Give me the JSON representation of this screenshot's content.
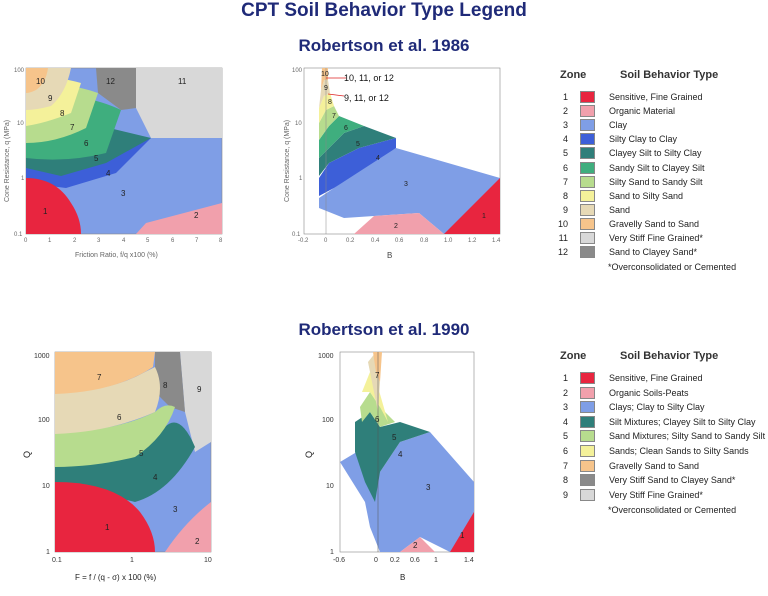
{
  "page": {
    "title": "CPT Soil Behavior Type Legend",
    "section1": "Robertson et al. 1986",
    "section2": "Robertson et al. 1990"
  },
  "colors": {
    "z1": "#e8253f",
    "z2": "#f1a0ac",
    "z3": "#7f9ee6",
    "z4": "#3d5fd8",
    "z5": "#2f7f7a",
    "z6": "#3fae7e",
    "z7": "#b7dc8e",
    "z8": "#f4f19a",
    "z9": "#e6d9b6",
    "z10": "#f6c48b",
    "z11": "#d8d8d8",
    "z12": "#8a8a8a"
  },
  "legend1986": {
    "zone_header": "Zone",
    "type_header": "Soil Behavior Type",
    "rows": [
      {
        "zone": "1",
        "label": "Sensitive, Fine Grained",
        "color": "#e8253f"
      },
      {
        "zone": "2",
        "label": "Organic Material",
        "color": "#f1a0ac"
      },
      {
        "zone": "3",
        "label": "Clay",
        "color": "#7f9ee6"
      },
      {
        "zone": "4",
        "label": "Silty Clay to Clay",
        "color": "#3d5fd8"
      },
      {
        "zone": "5",
        "label": "Clayey Silt to Silty Clay",
        "color": "#2f7f7a"
      },
      {
        "zone": "6",
        "label": "Sandy Silt to Clayey Silt",
        "color": "#3fae7e"
      },
      {
        "zone": "7",
        "label": "Silty Sand to Sandy Silt",
        "color": "#b7dc8e"
      },
      {
        "zone": "8",
        "label": "Sand to Silty Sand",
        "color": "#f4f19a"
      },
      {
        "zone": "9",
        "label": "Sand",
        "color": "#e6d9b6"
      },
      {
        "zone": "10",
        "label": "Gravelly Sand to Sand",
        "color": "#f6c48b"
      },
      {
        "zone": "11",
        "label": "Very Stiff Fine Grained*",
        "color": "#d8d8d8"
      },
      {
        "zone": "12",
        "label": "Sand to Clayey Sand*",
        "color": "#8a8a8a"
      }
    ],
    "note": "*Overconsolidated or Cemented"
  },
  "legend1990": {
    "zone_header": "Zone",
    "type_header": "Soil Behavior Type",
    "rows": [
      {
        "zone": "1",
        "label": "Sensitive, Fine Grained",
        "color": "#e8253f"
      },
      {
        "zone": "2",
        "label": "Organic Soils-Peats",
        "color": "#f1a0ac"
      },
      {
        "zone": "3",
        "label": "Clays; Clay to Silty Clay",
        "color": "#7f9ee6"
      },
      {
        "zone": "4",
        "label": "Silt Mixtures; Clayey Silt to Silty Clay",
        "color": "#2f7f7a"
      },
      {
        "zone": "5",
        "label": "Sand Mixtures; Silty Sand to Sandy Silt",
        "color": "#b7dc8e"
      },
      {
        "zone": "6",
        "label": "Sands; Clean Sands to Silty Sands",
        "color": "#f4f19a"
      },
      {
        "zone": "7",
        "label": "Gravelly Sand to Sand",
        "color": "#f6c48b"
      },
      {
        "zone": "8",
        "label": "Very Stiff Sand to Clayey Sand*",
        "color": "#8a8a8a"
      },
      {
        "zone": "9",
        "label": "Very Stiff Fine Grained*",
        "color": "#d8d8d8"
      }
    ],
    "note": "*Overconsolidated or Cemented"
  },
  "chart_1986_fr": {
    "ylabel": "Cone Resistance, q (MPa)",
    "xlabel": "Friction Ratio, f/q x100 (%)",
    "xticks": [
      "0",
      "1",
      "2",
      "3",
      "4",
      "5",
      "6",
      "7",
      "8"
    ],
    "yticks": [
      "100",
      "10",
      "1",
      "0.1"
    ]
  },
  "chart_1986_bq": {
    "ylabel": "Cone Resistance, q (MPa)",
    "xlabel": "B",
    "xticks": [
      "-0.2",
      "0",
      "0.2",
      "0.4",
      "0.6",
      "0.8",
      "1.0",
      "1.2",
      "1.4"
    ],
    "yticks": [
      "100",
      "10",
      "1",
      "0.1"
    ],
    "annotation1": "10, 11, or 12",
    "annotation2": "9, 11, or 12"
  },
  "chart_1990_fr": {
    "ylabel": "Q",
    "xlabel": "F = f / (q - σ) x 100 (%)",
    "xticks": [
      "0.1",
      "1",
      "10"
    ],
    "yticks": [
      "1000",
      "100",
      "10",
      "1"
    ]
  },
  "chart_1990_bq": {
    "ylabel": "Q",
    "xlabel": "B",
    "xticks": [
      "-0.6",
      "0",
      "0.2",
      "0.6",
      "1",
      "1.4"
    ],
    "yticks": [
      "1000",
      "100",
      "10",
      "1"
    ]
  }
}
